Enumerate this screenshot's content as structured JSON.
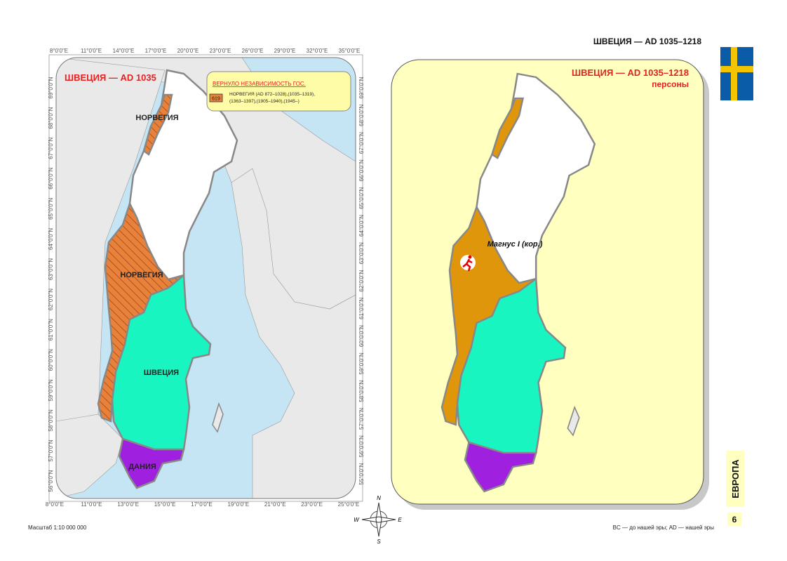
{
  "header": {
    "title": "ШВЕЦИЯ — AD 1035–1218"
  },
  "left_map": {
    "title": "ШВЕЦИЯ — AD 1035",
    "legend": {
      "title": "ВЕРНУЛО НЕЗАВИСИМОСТЬ ГОС.",
      "code": "619",
      "text": [
        "НОРВЕГИЯ (AD 872–1028),(1035–1319),",
        "(1363–1397),(1905–1940),(1945–)"
      ]
    },
    "labels": [
      "НОРВЕГИЯ",
      "НОРВЕГИЯ",
      "ШВЕЦИЯ",
      "ДАНИЯ"
    ],
    "top_ticks": [
      "8°0'0\"E",
      "11°0'0\"E",
      "14°0'0\"E",
      "17°0'0\"E",
      "20°0'0\"E",
      "23°0'0\"E",
      "26°0'0\"E",
      "29°0'0\"E",
      "32°0'0\"E",
      "35°0'0\"E"
    ],
    "bottom_ticks": [
      "8°0'0\"E",
      "11°0'0\"E",
      "13°0'0\"E",
      "15°0'0\"E",
      "17°0'0\"E",
      "19°0'0\"E",
      "21°0'0\"E",
      "23°0'0\"E",
      "25°0'0\"E"
    ],
    "left_ticks": [
      "69°0'0\"N",
      "68°0'0\"N",
      "67°0'0\"N",
      "66°0'0\"N",
      "65°0'0\"N",
      "64°0'0\"N",
      "63°0'0\"N",
      "62°0'0\"N",
      "61°0'0\"N",
      "60°0'0\"N",
      "59°0'0\"N",
      "58°0'0\"N",
      "57°0'0\"N",
      "56°0'0\"N"
    ],
    "right_ticks": [
      "69°0'0\"N",
      "68°0'0\"N",
      "67°0'0\"N",
      "66°0'0\"N",
      "65°0'0\"N",
      "64°0'0\"N",
      "63°0'0\"N",
      "62°0'0\"N",
      "61°0'0\"N",
      "60°0'0\"N",
      "59°0'0\"N",
      "58°0'0\"N",
      "57°0'0\"N",
      "56°0'0\"N",
      "55°0'0\"N"
    ]
  },
  "right_map": {
    "title": "ШВЕЦИЯ — AD 1035–1218",
    "subtitle": "персоны",
    "person": "Магнус I (кор.)"
  },
  "compass": [
    "N",
    "W",
    "E",
    "S"
  ],
  "sidebar": {
    "region": "ЕВРОПА",
    "page": "6"
  },
  "footer": {
    "scale": "Масштаб 1:10 000 000",
    "note": "BC — до нашей эры; AD — нашей эры"
  }
}
